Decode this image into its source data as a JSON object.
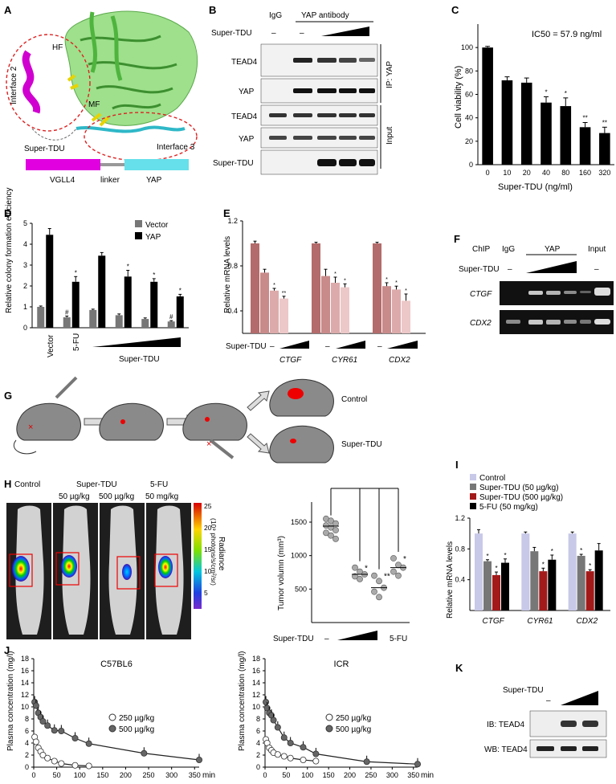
{
  "panels": {
    "A": "A",
    "B": "B",
    "C": "C",
    "D": "D",
    "E": "E",
    "F": "F",
    "G": "G",
    "H": "H",
    "I": "I",
    "J": "J",
    "K": "K"
  },
  "panelA": {
    "interface2": "Interface 2",
    "interface3": "Interface 3",
    "hf": "HF",
    "mf": "MF",
    "super_tdu": "Super-TDU",
    "bar_vgll4": "VGLL4",
    "bar_linker": "linker",
    "bar_yap": "YAP",
    "colors": {
      "vgll4": "#e000e0",
      "yap": "#66e0ea",
      "linker": "#999999",
      "protein": "#7ed36b"
    }
  },
  "panelB": {
    "igg": "IgG",
    "yap_ab": "YAP antibody",
    "super_tdu": "Super-TDU",
    "minus1": "–",
    "minus2": "–",
    "tead4_ip": "TEAD4",
    "yap_ip": "YAP",
    "tead4_in": "TEAD4",
    "yap_in": "YAP",
    "supertdu_in": "Super-TDU",
    "ip_label": "IP: YAP",
    "input_label": "Input"
  },
  "panelD": {
    "ylabel": "Relative colony formation efficiency",
    "legend_vector": "Vector",
    "legend_yap": "YAP",
    "xl_vector": "Vector",
    "xl_5fu": "5-FU",
    "xl_supertdu": "Super-TDU",
    "yticks": [
      "0",
      "1",
      "2",
      "3",
      "4",
      "5"
    ]
  },
  "panelE": {
    "ylabel": "Relative mRNA levels",
    "super_tdu": "Super-TDU",
    "genes": [
      "CTGF",
      "CYR61",
      "CDX2"
    ],
    "yticks": [
      "0.4",
      "0.8",
      "1.2"
    ],
    "dash": "–"
  },
  "panelF": {
    "chip": "ChIP",
    "igg": "IgG",
    "yap": "YAP",
    "input": "Input",
    "super_tdu": "Super-TDU",
    "ctgf": "CTGF",
    "cdx2": "CDX2",
    "minus": "–"
  },
  "panelG": {
    "control": "Control",
    "supertdu": "Super-TDU"
  },
  "panelH": {
    "control": "Control",
    "supertdu": "Super-TDU",
    "dose50": "50 µg/kg",
    "dose500": "500 µg/kg",
    "fu": "5-FU",
    "fudose": "50 mg/kg",
    "radiance": "Radiance",
    "radiance_unit": "(10⁹ photons/s/cm²/sr)",
    "cbticks": [
      "25",
      "20",
      "15",
      "10",
      "5"
    ],
    "ylabel": "Tumor volumn (mm³)",
    "yticks": [
      "500",
      "1000",
      "1500"
    ],
    "xl_supertdu": "Super-TDU",
    "xl_minus": "–",
    "xl_fu": "5-FU",
    "stars": [
      "*",
      "**",
      "*"
    ]
  },
  "panelK": {
    "super_tdu": "Super-TDU",
    "minus": "–",
    "ib": "IB: TEAD4",
    "wb": "WB: TEAD4"
  },
  "chart_data": [
    {
      "id": "C",
      "type": "bar",
      "categories": [
        "0",
        "10",
        "20",
        "40",
        "80",
        "160",
        "320"
      ],
      "values": [
        100,
        72,
        70,
        53,
        50,
        32,
        27
      ],
      "errors": [
        1,
        3,
        4,
        5,
        7,
        4,
        5
      ],
      "annotation": "IC50 = 57.9 ng/ml",
      "xlabel": "Super-TDU (ng/ml)",
      "ylabel": "Cell viability (%)",
      "ylim": [
        0,
        120
      ],
      "yticks": [
        "0",
        "20",
        "40",
        "60",
        "80",
        "100"
      ],
      "sig": [
        "",
        "",
        "",
        "*",
        "*",
        "**",
        "**"
      ],
      "color": "#000000"
    },
    {
      "id": "D",
      "type": "bar",
      "groups": [
        "Vector",
        "5-FU",
        "Super-TDU 1",
        "Super-TDU 2",
        "Super-TDU 3",
        "Super-TDU 4"
      ],
      "series": [
        {
          "name": "Vector",
          "values": [
            1.0,
            0.5,
            0.85,
            0.6,
            0.42,
            0.3
          ],
          "color": "#777777"
        },
        {
          "name": "YAP",
          "values": [
            4.45,
            2.2,
            3.45,
            2.45,
            2.2,
            1.5
          ],
          "color": "#000000"
        }
      ],
      "errors": [
        [
          0.04,
          0.06,
          0.04,
          0.06,
          0.05,
          0.04
        ],
        [
          0.3,
          0.25,
          0.15,
          0.3,
          0.15,
          0.1
        ]
      ],
      "sig_vector": [
        "",
        "#",
        "",
        "",
        "",
        "#"
      ],
      "sig_yap": [
        "",
        "*",
        "",
        "*",
        "*",
        "*"
      ],
      "ylim": [
        0,
        5
      ]
    },
    {
      "id": "E",
      "type": "bar",
      "genes": [
        "CTGF",
        "CYR61",
        "CDX2"
      ],
      "values": [
        [
          1.0,
          0.74,
          0.58,
          0.51
        ],
        [
          1.0,
          0.71,
          0.65,
          0.61
        ],
        [
          1.0,
          0.62,
          0.59,
          0.49
        ]
      ],
      "errors": [
        [
          0.02,
          0.03,
          0.02,
          0.02
        ],
        [
          0.01,
          0.06,
          0.05,
          0.03
        ],
        [
          0.01,
          0.03,
          0.03,
          0.06
        ]
      ],
      "sig": [
        [
          "",
          "",
          "*",
          "**"
        ],
        [
          "",
          "",
          "*",
          "*"
        ],
        [
          "",
          "*",
          "*",
          "*"
        ]
      ],
      "colors": [
        "#b36b6b",
        "#c98a8a",
        "#dcaaaa",
        "#ecc8c8"
      ],
      "ylim": [
        0.2,
        1.2
      ]
    },
    {
      "id": "H",
      "type": "scatter",
      "groups": [
        "–",
        "Super-TDU low",
        "Super-TDU high",
        "5-FU"
      ],
      "points": [
        [
          1550,
          1520,
          1480,
          1450,
          1420,
          1380,
          1340,
          1300,
          1250
        ],
        [
          820,
          760,
          720,
          690,
          650
        ],
        [
          700,
          620,
          520,
          460,
          380
        ],
        [
          960,
          860,
          820,
          760,
          700
        ]
      ],
      "means": [
        1440,
        720,
        520,
        820
      ],
      "ylim": [
        0,
        1800
      ]
    },
    {
      "id": "I",
      "type": "bar",
      "genes": [
        "CTGF",
        "CYR61",
        "CDX2"
      ],
      "series": [
        {
          "name": "Control",
          "values": [
            1.0,
            1.0,
            1.0
          ],
          "color": "#c8c8e8"
        },
        {
          "name": "Super-TDU (50 µg/kg)",
          "values": [
            0.64,
            0.77,
            0.71
          ],
          "color": "#777777"
        },
        {
          "name": "Super-TDU (500 µg/kg)",
          "values": [
            0.46,
            0.51,
            0.51
          ],
          "color": "#a31a1a"
        },
        {
          "name": "5-FU (50 mg/kg)",
          "values": [
            0.62,
            0.66,
            0.78
          ],
          "color": "#000000"
        }
      ],
      "errors": [
        [
          0.05,
          0.02,
          0.02
        ],
        [
          0.02,
          0.05,
          0.02
        ],
        [
          0.04,
          0.04,
          0.02
        ],
        [
          0.05,
          0.06,
          0.09
        ]
      ],
      "sig": [
        [
          "",
          "*",
          "*",
          "*"
        ],
        [
          "",
          "",
          "*",
          "*"
        ],
        [
          "",
          "*",
          "*",
          ""
        ]
      ],
      "ylabel": "Relative mRNA levels",
      "yticks": [
        "0.4",
        "0.8",
        "1.2"
      ],
      "ylim": [
        0,
        1.2
      ]
    },
    {
      "id": "J1",
      "type": "scatter",
      "title": "C57BL6",
      "xlabel": "min",
      "ylabel": "Plasma concentration (mg/l)",
      "xlim": [
        0,
        360
      ],
      "ylim": [
        0,
        18
      ],
      "xticks": [
        "0",
        "50",
        "100",
        "150",
        "200",
        "250",
        "300",
        "350"
      ],
      "yticks": [
        "0",
        "2",
        "4",
        "6",
        "8",
        "10",
        "12",
        "14",
        "16",
        "18"
      ],
      "series": [
        {
          "name": "250 µg/kg",
          "x": [
            2,
            5,
            10,
            15,
            20,
            30,
            45,
            60,
            90,
            120
          ],
          "y": [
            5.0,
            4.2,
            3.2,
            2.6,
            2.0,
            1.5,
            1.0,
            0.6,
            0.3,
            0.2
          ],
          "color": "#ffffff"
        },
        {
          "name": "500 µg/kg",
          "x": [
            2,
            5,
            10,
            15,
            20,
            30,
            45,
            60,
            90,
            120,
            240,
            360
          ],
          "y": [
            10.8,
            10.2,
            9.0,
            8.3,
            7.6,
            6.9,
            6.1,
            6.0,
            4.8,
            3.9,
            2.3,
            1.2
          ],
          "color": "#666666"
        }
      ]
    },
    {
      "id": "J2",
      "type": "scatter",
      "title": "ICR",
      "xlabel": "min",
      "ylabel": "Plasma concentration (mg/l)",
      "xlim": [
        0,
        360
      ],
      "ylim": [
        0,
        18
      ],
      "xticks": [
        "0",
        "50",
        "100",
        "150",
        "200",
        "250",
        "300",
        "350"
      ],
      "yticks": [
        "0",
        "2",
        "4",
        "6",
        "8",
        "10",
        "12",
        "14",
        "16",
        "18"
      ],
      "series": [
        {
          "name": "250 µg/kg",
          "x": [
            2,
            5,
            10,
            15,
            20,
            30,
            45,
            60,
            90,
            120
          ],
          "y": [
            4.6,
            4.0,
            3.2,
            2.8,
            2.4,
            2.1,
            1.8,
            1.5,
            1.2,
            1.0
          ],
          "color": "#ffffff"
        },
        {
          "name": "500 µg/kg",
          "x": [
            2,
            5,
            10,
            15,
            20,
            30,
            45,
            60,
            90,
            120,
            240,
            360
          ],
          "y": [
            10.8,
            9.8,
            9.0,
            8.6,
            7.8,
            6.6,
            4.9,
            4.0,
            3.3,
            2.2,
            0.9,
            0.5
          ],
          "color": "#666666"
        }
      ]
    }
  ]
}
